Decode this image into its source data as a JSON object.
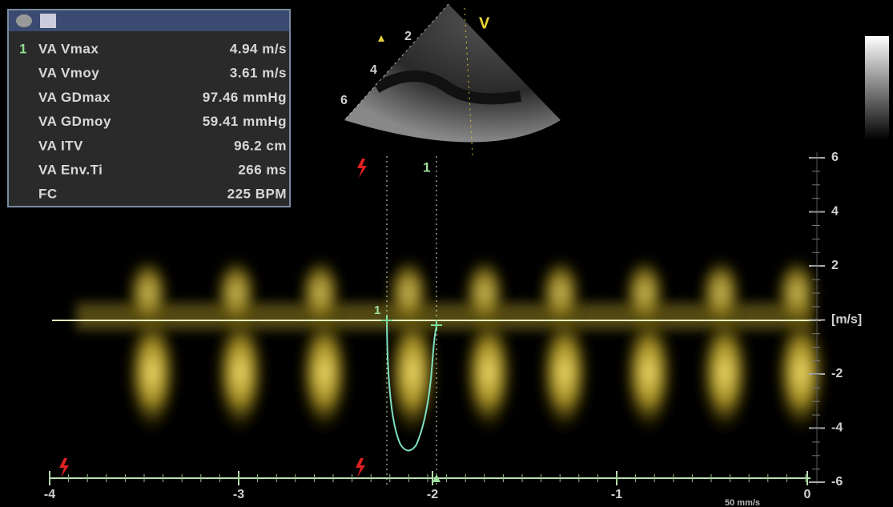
{
  "measurements": {
    "cursor": "1",
    "rows": [
      {
        "label": "VA Vmax",
        "value": "4.94 m/s"
      },
      {
        "label": "VA Vmoy",
        "value": "3.61 m/s"
      },
      {
        "label": "VA GDmax",
        "value": "97.46 mmHg"
      },
      {
        "label": "VA  GDmoy",
        "value": "59.41 mmHg"
      },
      {
        "label": "VA ITV",
        "value": "96.2 cm"
      },
      {
        "label": "VA Env.Ti",
        "value": "266 ms"
      },
      {
        "label": "FC",
        "value": "225 BPM"
      }
    ]
  },
  "sector": {
    "marker": "V",
    "depths": [
      "2",
      "4",
      "6"
    ]
  },
  "spectrum": {
    "marker_top": "1",
    "marker_left": "1",
    "velocity_scale": [
      "6",
      "4",
      "2",
      "[m/s]",
      "-2",
      "-4",
      "-6"
    ],
    "time_scale": [
      "-4",
      "-3",
      "-2",
      "-1",
      "0"
    ],
    "sweep_speed": "50 mm/s"
  }
}
